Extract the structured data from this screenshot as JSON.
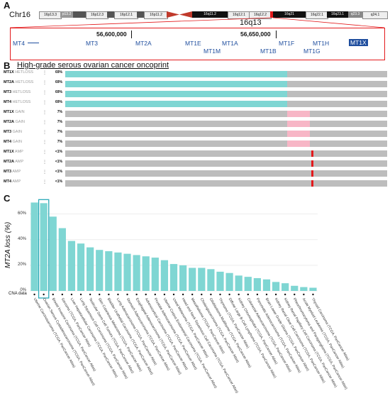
{
  "panel_a": {
    "letter": "A",
    "chrom": "Chr16",
    "band_label": "16q13",
    "bands": [
      "16p13.3",
      "p13.2",
      "16p12.3",
      "16p12.1",
      "16p11.2",
      "16q11.2",
      "16q12.1",
      "16q12.2",
      "16q21",
      "16q22.1",
      "16q23.1",
      "q23.3",
      "q24.1"
    ],
    "coords": [
      "56,600,000",
      "56,650,000"
    ],
    "genes": [
      "MT4",
      "MT3",
      "MT2A",
      "MT1E",
      "MT1A",
      "MT1F",
      "MT1H",
      "MT1X",
      "MT1M",
      "MT1B",
      "MT1G"
    ]
  },
  "panel_b": {
    "letter": "B",
    "title": "High-grade serous ovarian cancer oncoprint",
    "rows": [
      {
        "gene": "MT1X",
        "type": "HETLOSS",
        "pct": "69%"
      },
      {
        "gene": "MT2A",
        "type": "HETLOSS",
        "pct": "69%"
      },
      {
        "gene": "MT3",
        "type": "HETLOSS",
        "pct": "69%"
      },
      {
        "gene": "MT4",
        "type": "HETLOSS",
        "pct": "69%"
      },
      {
        "gene": "MT1X",
        "type": "GAIN",
        "pct": "7%"
      },
      {
        "gene": "MT2A",
        "type": "GAIN",
        "pct": "7%"
      },
      {
        "gene": "MT3",
        "type": "GAIN",
        "pct": "7%"
      },
      {
        "gene": "MT4",
        "type": "GAIN",
        "pct": "7%"
      },
      {
        "gene": "MT1X",
        "type": "AMP",
        "pct": "<1%"
      },
      {
        "gene": "MT2A",
        "type": "AMP",
        "pct": "<1%"
      },
      {
        "gene": "MT3",
        "type": "AMP",
        "pct": "<1%"
      },
      {
        "gene": "MT4",
        "type": "AMP",
        "pct": "<1%"
      }
    ],
    "colors": {
      "hetloss": "#7fd6d3",
      "gain": "#f7b6c6",
      "amp": "#e31a1c",
      "bg": "#bdbdbd"
    }
  },
  "panel_c": {
    "letter": "C",
    "cna_label": "CNA data"
  },
  "chart_data": {
    "type": "bar",
    "xlabel": "",
    "ylabel": "MT2A loss (%)",
    "ylim": [
      0,
      72
    ],
    "yticks": [
      "0%",
      "20%",
      "40%",
      "60%"
    ],
    "highlighted_category": "Ovarian Serous Cystadenocarcinoma (TCGA, PanCancer Atlas)",
    "categories": [
      "Uterine Carcinosarcoma (TCGA, PanCancer Atlas)",
      "Ovarian Serous Cystadenocarcinoma (TCGA, PanCancer Atlas)",
      "Breast Invasive Carcinoma (TCGA, PanCancer Atlas)",
      "Sarcoma (TCGA, PanCancer Atlas)",
      "Liver Hepatocellular Carcinoma (TCGA, PanCancer Atlas)",
      "Lung Squamous Cell Carcinoma (TCGA, PanCancer Atlas)",
      "Testicular Germ Cell Tumors (TCGA, PanCancer Atlas)",
      "Skin Cutaneous Melanoma (TCGA, PanCancer Atlas)",
      "Bladder Urothelial Carcinoma (TCGA, PanCancer Atlas)",
      "Lung Adenocarcinoma (TCGA, PanCancer Atlas)",
      "Stomach Adenocarcinoma (TCGA, PanCancer Atlas)",
      "Esophageal Adenocarcinoma (TCGA, PanCancer Atlas)",
      "Adrenocortical Carcinoma (TCGA, PanCancer Atlas)",
      "Prostate Adenocarcinoma (TCGA, PanCancer Atlas)",
      "Uterine Corpus Endometrial Carcinoma (TCGA, PanCancer Atlas)",
      "Uveal Melanoma (TCGA, PanCancer Atlas)",
      "Head and Neck Squamous Cell Carcinoma (TCGA, PanCancer Atlas)",
      "Mesothelioma (TCGA, PanCancer Atlas)",
      "Cholangiocarcinoma (TCGA, PanCancer Atlas)",
      "Glioblastoma Multiforme (TCGA, PanCancer Atlas)",
      "Thymoma (TCGA, PanCancer Atlas)",
      "Diffuse Large B-Cell Lymphoma (TCGA, PanCancer Atlas)",
      "Kidney Chromophobe (TCGA, PanCancer Atlas)",
      "Colorectal Adenocarcinoma (TCGA, PanCancer Atlas)",
      "Pancreatic Adenocarcinoma (TCGA, PanCancer Atlas)",
      "Brain Lower Grade Glioma (TCGA, PanCancer Atlas)",
      "Kidney Renal Clear Cell Carcinoma (TCGA, PanCancer Atlas)",
      "Kidney Renal Papillary Cell Carcinoma (TCGA, PanCancer Atlas)",
      "Pheochromocytoma and Paraganglioma (TCGA, PanCancer Atlas)",
      "Acute Myeloid Leukemia (TCGA, PanCancer Atlas)",
      "Thyroid Carcinoma (TCGA, PanCancer Atlas)"
    ],
    "values": [
      69,
      68.5,
      58,
      49,
      39,
      37,
      34,
      32,
      31,
      30,
      29,
      28,
      27,
      26,
      24,
      21,
      20,
      18,
      18,
      17,
      15,
      14,
      12,
      11,
      10,
      9,
      7,
      6,
      4,
      3,
      2.5
    ],
    "colors": {
      "bar": "#7fd6d3",
      "highlight_box": "#2aa9b8"
    }
  }
}
